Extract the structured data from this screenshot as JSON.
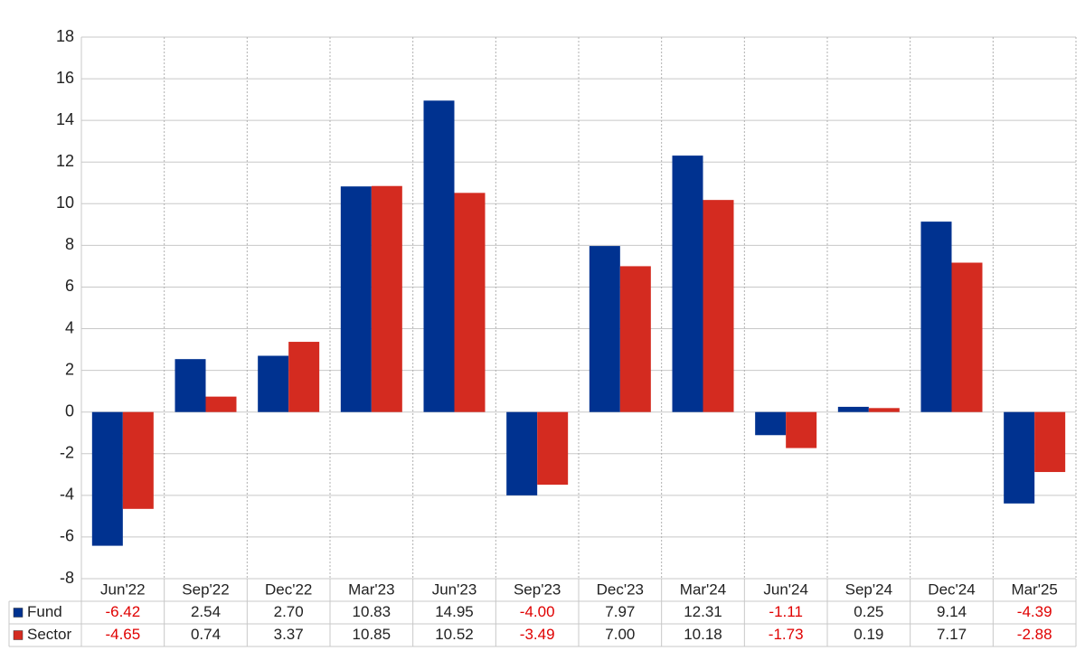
{
  "chart_data": {
    "type": "bar",
    "categories": [
      "Jun'22",
      "Sep'22",
      "Dec'22",
      "Mar'23",
      "Jun'23",
      "Sep'23",
      "Dec'23",
      "Mar'24",
      "Jun'24",
      "Sep'24",
      "Dec'24",
      "Mar'25"
    ],
    "series": [
      {
        "name": "Fund",
        "color": "#003290",
        "values": [
          -6.42,
          2.54,
          2.7,
          10.83,
          14.95,
          -4.0,
          7.97,
          12.31,
          -1.11,
          0.25,
          9.14,
          -4.39
        ],
        "value_labels": [
          "-6.42",
          "2.54",
          "2.70",
          "10.83",
          "14.95",
          "-4.00",
          "7.97",
          "12.31",
          "-1.11",
          "0.25",
          "9.14",
          "-4.39"
        ]
      },
      {
        "name": "Sector",
        "color": "#d42b20",
        "values": [
          -4.65,
          0.74,
          3.37,
          10.85,
          10.52,
          -3.49,
          7.0,
          10.18,
          -1.73,
          0.19,
          7.17,
          -2.88
        ],
        "value_labels": [
          "-4.65",
          "0.74",
          "3.37",
          "10.85",
          "10.52",
          "-3.49",
          "7.00",
          "10.18",
          "-1.73",
          "0.19",
          "7.17",
          "-2.88"
        ]
      }
    ],
    "ylim": [
      -8,
      18
    ],
    "yticks": [
      -8,
      -6,
      -4,
      -2,
      0,
      2,
      4,
      6,
      8,
      10,
      12,
      14,
      16,
      18
    ],
    "grid": true
  }
}
